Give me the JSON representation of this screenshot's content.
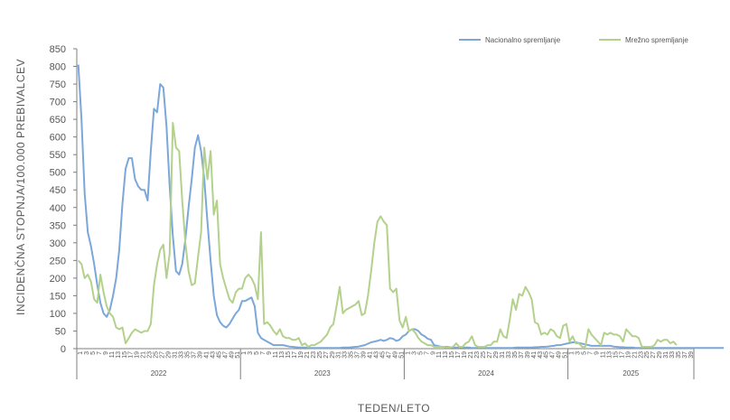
{
  "chart_data": {
    "type": "line",
    "ylabel": "INCIDENČNA  STOPNJA/100.000  PREBIVALCEV",
    "xlabel": "TEDEN/LETO",
    "ylim": [
      0,
      850
    ],
    "yticks": [
      0,
      50,
      100,
      150,
      200,
      250,
      300,
      350,
      400,
      450,
      500,
      550,
      600,
      650,
      700,
      750,
      800,
      850
    ],
    "grid": false,
    "legend_position": "top-right",
    "years": [
      {
        "label": "2022",
        "weeks": [
          "1",
          "3",
          "5",
          "7",
          "9",
          "11",
          "13",
          "15",
          "17",
          "19",
          "21",
          "23",
          "25",
          "27",
          "29",
          "31",
          "33",
          "35",
          "37",
          "39",
          "41",
          "43",
          "45",
          "47",
          "49",
          "51"
        ]
      },
      {
        "label": "2023",
        "weeks": [
          "1",
          "3",
          "5",
          "7",
          "9",
          "11",
          "13",
          "15",
          "17",
          "19",
          "21",
          "23",
          "25",
          "27",
          "29",
          "31",
          "33",
          "35",
          "37",
          "39",
          "41",
          "43",
          "45",
          "47",
          "49",
          "51"
        ]
      },
      {
        "label": "2024",
        "weeks": [
          "1",
          "3",
          "5",
          "7",
          "9",
          "11",
          "13",
          "15",
          "17",
          "19",
          "21",
          "23",
          "25",
          "27",
          "29",
          "31",
          "33",
          "35",
          "37",
          "39",
          "41",
          "43",
          "45",
          "47",
          "49",
          "51"
        ]
      },
      {
        "label": "2025",
        "weeks": [
          "1",
          "3",
          "5",
          "7",
          "9",
          "11",
          "13",
          "15",
          "17",
          "19",
          "21",
          "23",
          "25",
          "27",
          "29",
          "31",
          "33",
          "35",
          "37",
          "39"
        ]
      }
    ],
    "series": [
      {
        "name": "Nacionalno spremljanje",
        "color": "#7ba7d9",
        "values": [
          805,
          650,
          440,
          330,
          290,
          240,
          180,
          130,
          100,
          90,
          110,
          150,
          200,
          280,
          410,
          510,
          540,
          540,
          480,
          460,
          450,
          450,
          420,
          560,
          680,
          670,
          750,
          740,
          630,
          460,
          320,
          220,
          210,
          240,
          310,
          400,
          480,
          570,
          605,
          560,
          480,
          360,
          250,
          150,
          95,
          75,
          65,
          60,
          70,
          85,
          100,
          110,
          135,
          135,
          140,
          145,
          120,
          45,
          30,
          25,
          20,
          15,
          10,
          10,
          10,
          10,
          8,
          6,
          5,
          4,
          3,
          3,
          3,
          2,
          2,
          2,
          2,
          2,
          2,
          2,
          2,
          2,
          2,
          2,
          3,
          3,
          3,
          4,
          5,
          6,
          8,
          10,
          14,
          18,
          20,
          22,
          25,
          22,
          25,
          30,
          28,
          22,
          25,
          35,
          40,
          50,
          55,
          55,
          50,
          40,
          35,
          28,
          25,
          10,
          8,
          6,
          5,
          5,
          4,
          3,
          3,
          3,
          3,
          3,
          3,
          2,
          2,
          2,
          2,
          2,
          2,
          2,
          2,
          2,
          2,
          2,
          2,
          2,
          2,
          3,
          3,
          3,
          3,
          3,
          3,
          4,
          4,
          5,
          5,
          6,
          7,
          8,
          10,
          10,
          12,
          14,
          16,
          18,
          18,
          16,
          14,
          12,
          10,
          8,
          8,
          8,
          8,
          8,
          8,
          8,
          6,
          5,
          4,
          4,
          3,
          3,
          3,
          2,
          2,
          2,
          2,
          2,
          2,
          2,
          2,
          2,
          2,
          2,
          2,
          2,
          2,
          2,
          2,
          2,
          2,
          2,
          2,
          2,
          2,
          2,
          2,
          2,
          2,
          2,
          2,
          2
        ]
      },
      {
        "name": "Mrežno spremljanje",
        "color": "#b3d18c",
        "values": [
          250,
          240,
          200,
          210,
          190,
          140,
          130,
          210,
          160,
          120,
          100,
          90,
          60,
          55,
          60,
          15,
          30,
          45,
          55,
          50,
          45,
          50,
          50,
          70,
          180,
          240,
          280,
          295,
          200,
          270,
          640,
          570,
          560,
          420,
          300,
          220,
          180,
          185,
          260,
          330,
          570,
          480,
          560,
          380,
          420,
          240,
          200,
          170,
          140,
          130,
          160,
          170,
          170,
          200,
          210,
          200,
          180,
          140,
          330,
          70,
          75,
          65,
          50,
          40,
          55,
          35,
          30,
          30,
          25,
          25,
          30,
          10,
          15,
          5,
          10,
          10,
          15,
          20,
          30,
          40,
          60,
          70,
          120,
          175,
          100,
          110,
          115,
          120,
          125,
          135,
          95,
          100,
          150,
          220,
          300,
          360,
          375,
          360,
          350,
          170,
          160,
          170,
          80,
          60,
          90,
          50,
          55,
          45,
          30,
          20,
          15,
          10,
          10,
          5,
          5,
          5,
          5,
          3,
          3,
          5,
          15,
          5,
          5,
          15,
          20,
          35,
          10,
          5,
          5,
          5,
          10,
          10,
          20,
          20,
          55,
          35,
          30,
          80,
          140,
          110,
          155,
          150,
          175,
          160,
          140,
          75,
          70,
          40,
          45,
          40,
          55,
          50,
          35,
          30,
          65,
          70,
          20,
          35,
          15,
          15,
          5,
          5,
          55,
          40,
          30,
          20,
          10,
          45,
          40,
          45,
          40,
          40,
          35,
          20,
          55,
          45,
          35,
          35,
          30,
          5,
          5,
          5,
          5,
          10,
          25,
          20,
          25,
          25,
          15,
          20,
          10
        ]
      }
    ]
  }
}
